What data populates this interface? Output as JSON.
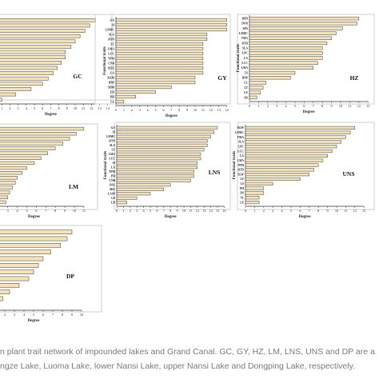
{
  "chart_data": [
    {
      "type": "bar",
      "orientation": "horizontal",
      "panel_label": "GC",
      "xlabel": "Degree",
      "ylabel": "",
      "xlim": [
        0,
        14
      ],
      "xticks": [
        "0",
        "1",
        "2",
        "3",
        "4",
        "5",
        "6",
        "7",
        "8",
        "9",
        "10",
        "11",
        "12",
        "13",
        "14"
      ],
      "categories": [
        "",
        "",
        "",
        "",
        "",
        "",
        "",
        "",
        "",
        "",
        "",
        "",
        "",
        "",
        "",
        ""
      ],
      "values": [
        12.5,
        11.8,
        11.2,
        10.6,
        10.0,
        9.5,
        8.8,
        8.8,
        8.3,
        7.8,
        7.3,
        6.7,
        6.0,
        4.6,
        2.7,
        1.0
      ],
      "bar_color": "#f5e3b5",
      "bar_edge": "#3a3a3a"
    },
    {
      "type": "bar",
      "orientation": "horizontal",
      "panel_label": "GY",
      "xlabel": "Degree",
      "ylabel": "Functional traits",
      "xlim": [
        0,
        14
      ],
      "xticks": [
        "0",
        "1",
        "2",
        "3",
        "4",
        "5",
        "6",
        "7",
        "8",
        "9",
        "10",
        "11",
        "12",
        "13",
        "14"
      ],
      "categories": [
        "GA",
        "SI",
        "LDMC",
        "SLA",
        "HTN",
        "LT",
        "LMA",
        "LCC",
        "TPM",
        "CNB",
        "SIZE",
        "LA",
        "RAM",
        "BNP",
        "SDM",
        "LD",
        "PH",
        "LE"
      ],
      "values": [
        14,
        14,
        14,
        11.5,
        11.5,
        11,
        11,
        11,
        11,
        11,
        11,
        11,
        10,
        10,
        7,
        5,
        2.5,
        1
      ],
      "bar_color": "#f5e3b5",
      "bar_edge": "#3a3a3a"
    },
    {
      "type": "bar",
      "orientation": "horizontal",
      "panel_label": "HZ",
      "xlabel": "Degree",
      "ylabel": "Functional traits",
      "xlim": [
        0,
        13
      ],
      "xticks": [
        "0",
        "1",
        "2",
        "3",
        "4",
        "5",
        "6",
        "7",
        "8",
        "9",
        "10",
        "11",
        "12",
        "13"
      ],
      "categories": [
        "DPD",
        "DVR",
        "SPA",
        "LDMC",
        "TMA",
        "RTD",
        "SLA",
        "LPC",
        "LA",
        "LCC",
        "LMA",
        "TS",
        "BNP",
        "LL",
        "LT",
        "LE",
        "DS"
      ],
      "values": [
        12,
        11.8,
        10.2,
        9.5,
        9.0,
        8.5,
        8.0,
        8.0,
        8.0,
        7.5,
        7.0,
        5.0,
        4.5,
        1.8,
        1.5,
        1.2,
        0.8
      ],
      "bar_color": "#f5e3b5",
      "bar_edge": "#3a3a3a"
    },
    {
      "type": "bar",
      "orientation": "horizontal",
      "panel_label": "LM",
      "xlabel": "Degree",
      "ylabel": "",
      "xlim": [
        0,
        11
      ],
      "xticks": [
        "3",
        "4",
        "5",
        "6",
        "7",
        "8",
        "9",
        "10",
        "11"
      ],
      "categories": [
        "",
        "",
        "",
        "",
        "",
        "",
        "",
        "",
        "",
        "",
        "",
        "",
        "",
        "",
        "",
        ""
      ],
      "values": [
        11,
        10.2,
        9.5,
        8.8,
        8.0,
        7.2,
        6.5,
        5.8,
        5.0,
        4.5,
        4.0,
        3.8,
        3.5,
        3.2,
        3.0,
        2.8
      ],
      "bar_color": "#f5e3b5",
      "bar_edge": "#3a3a3a"
    },
    {
      "type": "bar",
      "orientation": "horizontal",
      "panel_label": "LNS",
      "xlabel": "Degree",
      "ylabel": "Functional traits",
      "xlim": [
        0,
        16
      ],
      "xticks": [
        "0",
        "1",
        "2",
        "3",
        "4",
        "5",
        "6",
        "7",
        "8",
        "9",
        "10",
        "11",
        "12",
        "13",
        "14",
        "15",
        "16"
      ],
      "categories": [
        "GA",
        "SI",
        "LDMC",
        "HTN",
        "SLA",
        "LT",
        "LMA",
        "LCC",
        "SI",
        "LA",
        "TPM",
        "PH",
        "CNB",
        "DSL",
        "SRL",
        "LASP",
        "LE",
        "LD"
      ],
      "values": [
        15,
        14.5,
        14,
        13.5,
        13.5,
        13,
        12.5,
        12.5,
        12,
        12,
        11.5,
        11.5,
        11,
        8,
        7,
        5,
        3,
        1.5
      ],
      "bar_color": "#f5e3b5",
      "bar_edge": "#3a3a3a"
    },
    {
      "type": "bar",
      "orientation": "horizontal",
      "panel_label": "UNS",
      "xlabel": "Degree",
      "ylabel": "Functional traits",
      "xlim": [
        0,
        13
      ],
      "xticks": [
        "0",
        "1",
        "2",
        "3",
        "4",
        "5",
        "6",
        "7",
        "8",
        "9",
        "10",
        "11",
        "12",
        "13"
      ],
      "categories": [
        "DLW",
        "LDMC",
        "TMA",
        "SLA",
        "LPC",
        "LCC",
        "LA",
        "LMA",
        "TPM",
        "RTD",
        "SLW",
        "LT",
        "LS",
        "PH",
        "DS",
        "SL",
        "LE"
      ],
      "values": [
        12,
        11.5,
        11,
        10.5,
        10,
        9.5,
        9.0,
        8.5,
        8.0,
        7.5,
        7.0,
        6.0,
        3.0,
        2.0,
        2.0,
        1.5,
        1.5
      ],
      "bar_color": "#f5e3b5",
      "bar_edge": "#3a3a3a"
    },
    {
      "type": "bar",
      "orientation": "horizontal",
      "panel_label": "DP",
      "xlabel": "Degree",
      "ylabel": "",
      "xlim": [
        0,
        10
      ],
      "xticks": [
        "1",
        "2",
        "3",
        "4",
        "5",
        "6",
        "7",
        "8",
        "9",
        "10"
      ],
      "categories": [
        "",
        "",
        "",
        "",
        "",
        "",
        "",
        "",
        "",
        "",
        "",
        ""
      ],
      "values": [
        9.0,
        8.5,
        7.8,
        6.8,
        6.0,
        5.5,
        5.0,
        4.5,
        3.5,
        2.5,
        1.8,
        1.2
      ],
      "bar_color": "#f5e3b5",
      "bar_edge": "#3a3a3a"
    }
  ],
  "caption": {
    "line1": "n plant trait network of impounded lakes and Grand Canal. GC, GY, HZ, LM, LNS, UNS and DP are a",
    "line2": "ngze Lake, Luoma Lake, lower Nansi Lake, upper Nansi Lake and Dongping Lake, respectively."
  }
}
